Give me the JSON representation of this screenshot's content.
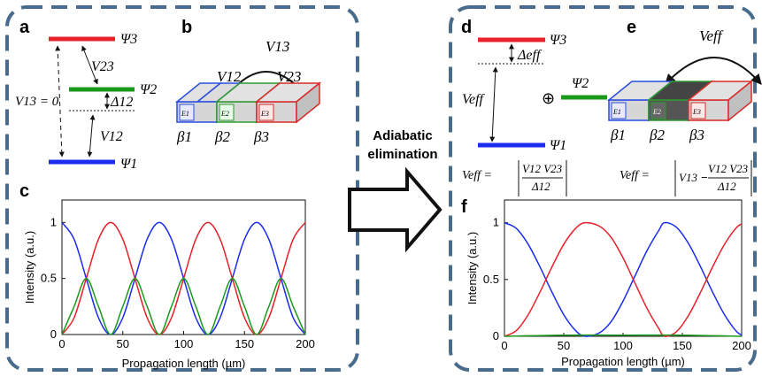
{
  "left_panels": {
    "a": {
      "label": "a",
      "levels": [
        "Ψ3",
        "Ψ2",
        "Ψ1"
      ],
      "couplings": [
        "V23",
        "V12"
      ],
      "v13_label": "V13 = 0",
      "detuning": "Δ12"
    },
    "b": {
      "label": "b",
      "couplings": [
        "V13",
        "V12",
        "V23"
      ],
      "waveguides": [
        "β1",
        "β2",
        "β3"
      ],
      "waveguide_tags": [
        "E1",
        "E2",
        "E3"
      ]
    },
    "c": {
      "label": "c"
    }
  },
  "arrow_text": {
    "line1": "Adiabatic",
    "line2": "elimination"
  },
  "right_panels": {
    "d": {
      "label": "d",
      "levels": [
        "Ψ3",
        "Ψ2",
        "Ψ1"
      ],
      "coupling": "Veff",
      "detuning": "Δeff",
      "oplus": "⊕",
      "formula": {
        "lhs": "Veff =",
        "num": "V12 V23",
        "den": "Δ12"
      }
    },
    "e": {
      "label": "e",
      "coupling": "Veff",
      "waveguides": [
        "β1",
        "β2",
        "β3"
      ],
      "waveguide_tags": [
        "E1",
        "E2",
        "E3"
      ],
      "formula": {
        "lhs": "Veff =",
        "v13": "V13",
        "num": "V12 V23",
        "den": "Δ12"
      }
    },
    "f": {
      "label": "f"
    }
  },
  "colors": {
    "blue": "#1a2cf0",
    "red": "#e8202a",
    "green": "#1a9a1a",
    "frame": "#4a6c8c"
  },
  "chart_data": [
    {
      "type": "line",
      "panel": "c",
      "xlabel": "Propagation length (µm)",
      "ylabel": "Intensity (a.u.)",
      "xlim": [
        0,
        200
      ],
      "ylim": [
        0,
        1.2
      ],
      "xticks": [
        0,
        50,
        100,
        150,
        200
      ],
      "yticks": [
        0,
        0.5,
        1
      ],
      "ytick_labels": [
        "0",
        "0.5",
        "1"
      ],
      "grid": false,
      "series": [
        {
          "color": "blue",
          "values": [
            [
              0,
              1
            ],
            [
              10,
              0.85
            ],
            [
              20,
              0.5
            ],
            [
              30,
              0.15
            ],
            [
              40,
              0
            ],
            [
              50,
              0.15
            ],
            [
              60,
              0.5
            ],
            [
              70,
              0.85
            ],
            [
              80,
              1
            ],
            [
              90,
              0.85
            ],
            [
              100,
              0.5
            ],
            [
              110,
              0.15
            ],
            [
              120,
              0
            ],
            [
              130,
              0.15
            ],
            [
              140,
              0.5
            ],
            [
              150,
              0.85
            ],
            [
              160,
              1
            ],
            [
              170,
              0.85
            ],
            [
              180,
              0.5
            ],
            [
              190,
              0.15
            ],
            [
              200,
              0
            ]
          ]
        },
        {
          "color": "red",
          "values": [
            [
              0,
              0
            ],
            [
              10,
              0.15
            ],
            [
              20,
              0.5
            ],
            [
              30,
              0.85
            ],
            [
              40,
              1
            ],
            [
              50,
              0.85
            ],
            [
              60,
              0.5
            ],
            [
              70,
              0.15
            ],
            [
              80,
              0
            ],
            [
              90,
              0.15
            ],
            [
              100,
              0.5
            ],
            [
              110,
              0.85
            ],
            [
              120,
              1
            ],
            [
              130,
              0.85
            ],
            [
              140,
              0.5
            ],
            [
              150,
              0.15
            ],
            [
              160,
              0
            ],
            [
              170,
              0.15
            ],
            [
              180,
              0.5
            ],
            [
              190,
              0.85
            ],
            [
              200,
              1
            ]
          ]
        },
        {
          "color": "green",
          "values": [
            [
              0,
              0
            ],
            [
              10,
              0.25
            ],
            [
              20,
              0.5
            ],
            [
              30,
              0.25
            ],
            [
              40,
              0
            ],
            [
              50,
              0.25
            ],
            [
              60,
              0.5
            ],
            [
              70,
              0.25
            ],
            [
              80,
              0
            ],
            [
              90,
              0.25
            ],
            [
              100,
              0.5
            ],
            [
              110,
              0.25
            ],
            [
              120,
              0
            ],
            [
              130,
              0.25
            ],
            [
              140,
              0.5
            ],
            [
              150,
              0.25
            ],
            [
              160,
              0
            ],
            [
              170,
              0.25
            ],
            [
              180,
              0.5
            ],
            [
              190,
              0.25
            ],
            [
              200,
              0
            ]
          ]
        }
      ]
    },
    {
      "type": "line",
      "panel": "f",
      "xlabel": "Propagation length (µm)",
      "ylabel": "Intensity (a.u.)",
      "xlim": [
        0,
        200
      ],
      "ylim": [
        0,
        1.2
      ],
      "xticks": [
        0,
        50,
        100,
        150,
        200
      ],
      "yticks": [
        0,
        0.5,
        1
      ],
      "ytick_labels": [
        "0",
        "0.5",
        "1"
      ],
      "grid": false,
      "series": [
        {
          "color": "blue",
          "values": [
            [
              0,
              1
            ],
            [
              10,
              0.95
            ],
            [
              20,
              0.81
            ],
            [
              30,
              0.61
            ],
            [
              40,
              0.39
            ],
            [
              50,
              0.19
            ],
            [
              60,
              0.05
            ],
            [
              68,
              0
            ],
            [
              80,
              0.03
            ],
            [
              90,
              0.13
            ],
            [
              100,
              0.31
            ],
            [
              110,
              0.53
            ],
            [
              120,
              0.75
            ],
            [
              130,
              0.93
            ],
            [
              135,
              1
            ],
            [
              145,
              0.96
            ],
            [
              155,
              0.82
            ],
            [
              165,
              0.62
            ],
            [
              175,
              0.4
            ],
            [
              185,
              0.2
            ],
            [
              195,
              0.05
            ],
            [
              200,
              0.01
            ]
          ]
        },
        {
          "color": "red",
          "values": [
            [
              0,
              0
            ],
            [
              10,
              0.05
            ],
            [
              20,
              0.19
            ],
            [
              30,
              0.39
            ],
            [
              40,
              0.61
            ],
            [
              50,
              0.81
            ],
            [
              60,
              0.95
            ],
            [
              68,
              1
            ],
            [
              80,
              0.97
            ],
            [
              90,
              0.87
            ],
            [
              100,
              0.69
            ],
            [
              110,
              0.47
            ],
            [
              120,
              0.25
            ],
            [
              130,
              0.07
            ],
            [
              135,
              0
            ],
            [
              145,
              0.04
            ],
            [
              155,
              0.18
            ],
            [
              165,
              0.38
            ],
            [
              175,
              0.6
            ],
            [
              185,
              0.8
            ],
            [
              195,
              0.95
            ],
            [
              200,
              0.99
            ]
          ]
        },
        {
          "color": "green",
          "values": [
            [
              0,
              0
            ],
            [
              50,
              0.01
            ],
            [
              100,
              0.01
            ],
            [
              150,
              0.01
            ],
            [
              200,
              0
            ]
          ]
        }
      ]
    }
  ]
}
